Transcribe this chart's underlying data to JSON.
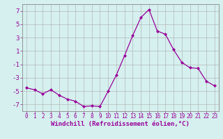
{
  "x": [
    0,
    1,
    2,
    3,
    4,
    5,
    6,
    7,
    8,
    9,
    10,
    11,
    12,
    13,
    14,
    15,
    16,
    17,
    18,
    19,
    20,
    21,
    22,
    23
  ],
  "y": [
    -4.5,
    -4.8,
    -5.4,
    -4.8,
    -5.6,
    -6.2,
    -6.5,
    -7.3,
    -7.2,
    -7.3,
    -5.0,
    -2.6,
    0.3,
    3.3,
    6.0,
    7.2,
    4.0,
    3.5,
    1.2,
    -0.7,
    -1.5,
    -1.6,
    -3.5,
    -4.2
  ],
  "line_color": "#990099",
  "marker": "D",
  "marker_size": 2,
  "bg_color": "#d5f0ef",
  "grid_color": "#aaaaaa",
  "xlabel": "Windchill (Refroidissement éolien,°C)",
  "ylim": [
    -8,
    8
  ],
  "xlim": [
    -0.5,
    23.5
  ],
  "yticks": [
    -7,
    -5,
    -3,
    -1,
    1,
    3,
    5,
    7
  ],
  "xticks": [
    0,
    1,
    2,
    3,
    4,
    5,
    6,
    7,
    8,
    9,
    10,
    11,
    12,
    13,
    14,
    15,
    16,
    17,
    18,
    19,
    20,
    21,
    22,
    23
  ],
  "xlabel_color": "#990099",
  "tick_color": "#990099",
  "label_fontsize": 6.5,
  "tick_fontsize": 5.5,
  "ytick_fontsize": 6.5,
  "spine_color": "#888888",
  "linewidth": 0.9
}
